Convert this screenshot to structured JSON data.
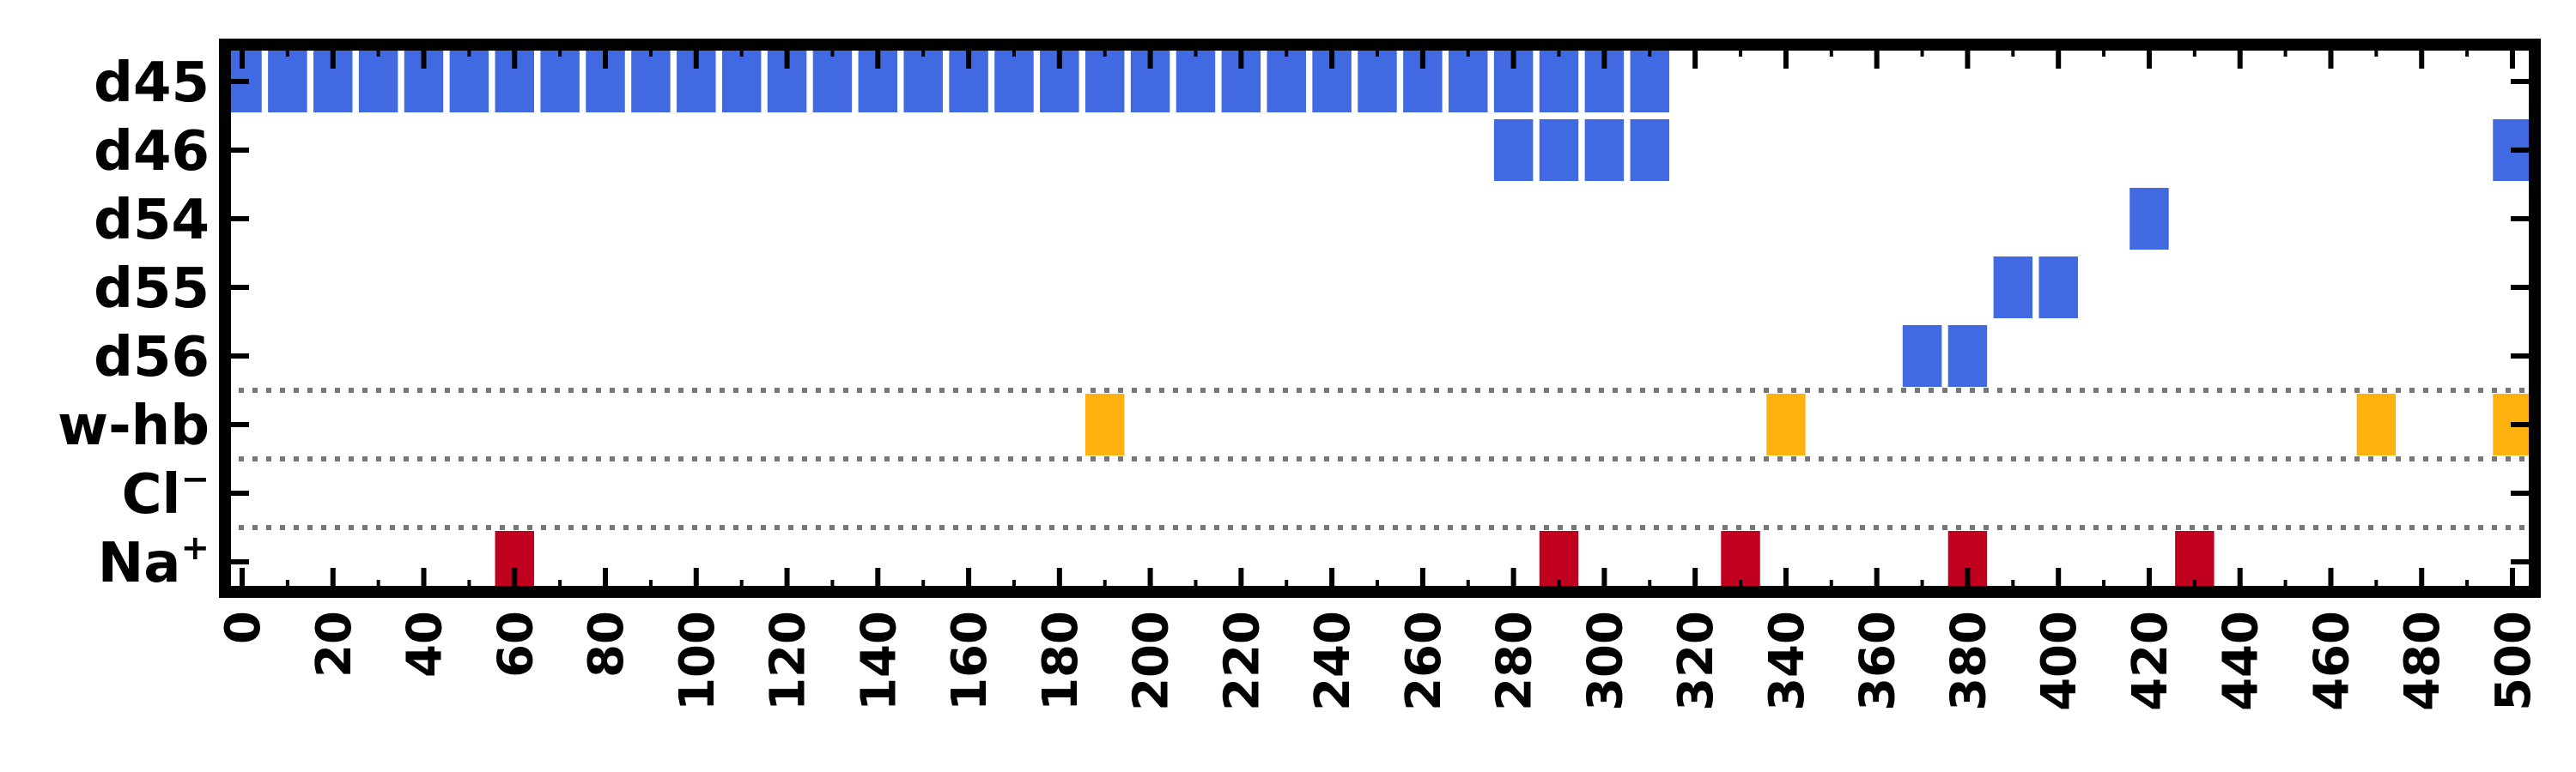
{
  "chart_data": {
    "type": "heatmap",
    "rows": [
      {
        "key": "d45",
        "label": "d45",
        "sup": ""
      },
      {
        "key": "d46",
        "label": "d46",
        "sup": ""
      },
      {
        "key": "d54",
        "label": "d54",
        "sup": ""
      },
      {
        "key": "d55",
        "label": "d55",
        "sup": ""
      },
      {
        "key": "d56",
        "label": "d56",
        "sup": ""
      },
      {
        "key": "whb",
        "label": "w-hb",
        "sup": ""
      },
      {
        "key": "cl",
        "label": "Cl",
        "sup": "−"
      },
      {
        "key": "na",
        "label": "Na",
        "sup": "+"
      }
    ],
    "xlim": [
      0,
      500
    ],
    "x_ticks": [
      0,
      20,
      40,
      60,
      80,
      100,
      120,
      140,
      160,
      180,
      200,
      220,
      240,
      260,
      280,
      300,
      320,
      340,
      360,
      380,
      400,
      420,
      440,
      460,
      480,
      500
    ],
    "minor_ticks": [
      10,
      30,
      50,
      70,
      90,
      110,
      130,
      150,
      170,
      190,
      210,
      230,
      250,
      270,
      290,
      310,
      330,
      350,
      370,
      390,
      410,
      430,
      450,
      470,
      490
    ],
    "cell_width": 8.6,
    "group_separators_after_rows": [
      4,
      5,
      6
    ],
    "grid": false,
    "events": {
      "d45": [
        0,
        10,
        20,
        30,
        40,
        50,
        60,
        70,
        80,
        90,
        100,
        110,
        120,
        130,
        140,
        150,
        160,
        170,
        180,
        190,
        200,
        210,
        220,
        230,
        240,
        250,
        260,
        270,
        280,
        290,
        300,
        310
      ],
      "d46": [
        280,
        290,
        300,
        310,
        500
      ],
      "d54": [
        420
      ],
      "d55": [
        390,
        400
      ],
      "d56": [
        370,
        380
      ],
      "whb": [
        190,
        340,
        470,
        500
      ],
      "cl": [],
      "na": [
        60,
        290,
        330,
        380,
        430
      ]
    },
    "colors": {
      "d45": "#4169e1",
      "d46": "#4169e1",
      "d54": "#4169e1",
      "d55": "#4169e1",
      "d56": "#4169e1",
      "whb": "#ffb20f",
      "cl": "#2ca02c",
      "na": "#c1001f",
      "separator": "#777777",
      "frame": "#000000"
    }
  }
}
